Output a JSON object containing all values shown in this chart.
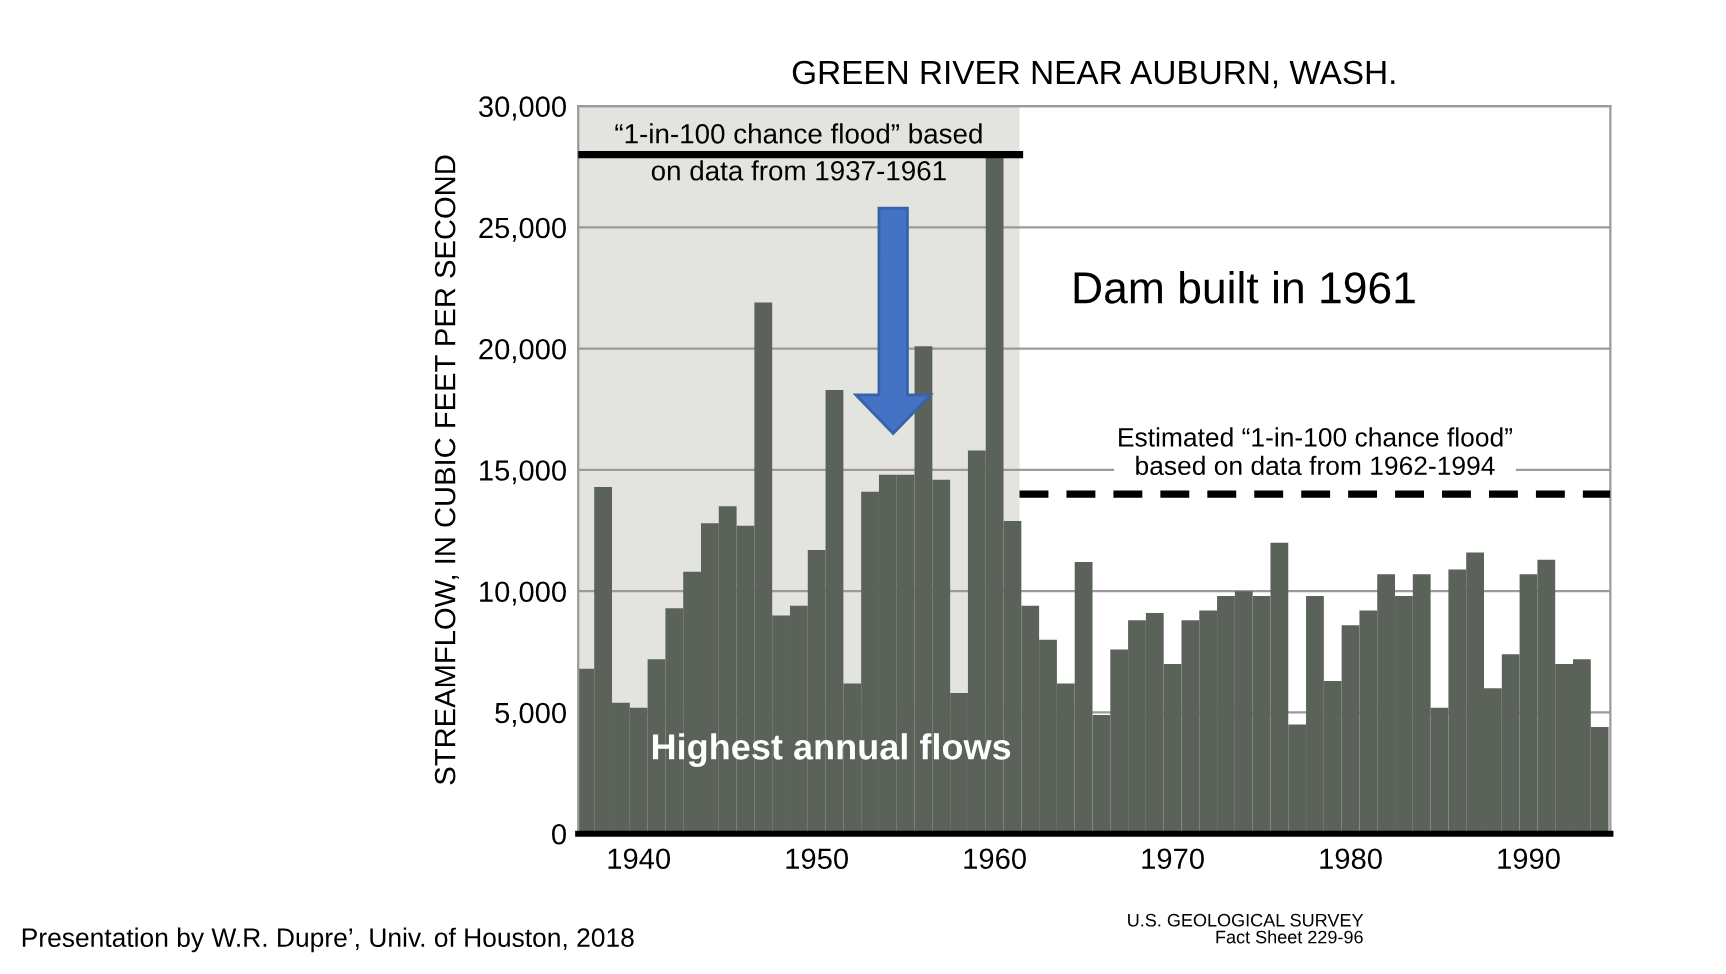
{
  "chart_data": {
    "type": "bar",
    "title": "GREEN RIVER NEAR AUBURN, WASH.",
    "ylabel": "STREAMFLOW, IN CUBIC FEET PER SECOND",
    "x": [
      1937,
      1938,
      1939,
      1940,
      1941,
      1942,
      1943,
      1944,
      1945,
      1946,
      1947,
      1948,
      1949,
      1950,
      1951,
      1952,
      1953,
      1954,
      1955,
      1956,
      1957,
      1958,
      1959,
      1960,
      1961,
      1962,
      1963,
      1964,
      1965,
      1966,
      1967,
      1968,
      1969,
      1970,
      1971,
      1972,
      1973,
      1974,
      1975,
      1976,
      1977,
      1978,
      1979,
      1980,
      1981,
      1982,
      1983,
      1984,
      1985,
      1986,
      1987,
      1988,
      1989,
      1990,
      1991,
      1992,
      1993,
      1994
    ],
    "series": [
      {
        "color": "#5b6259",
        "values": [
          6800,
          14300,
          5400,
          5200,
          7200,
          9300,
          10800,
          12800,
          13500,
          12700,
          21900,
          9000,
          9400,
          11700,
          18300,
          6200,
          14100,
          14800,
          14800,
          20100,
          14600,
          5800,
          15800,
          28100,
          12900,
          9400,
          8000,
          6200,
          11200,
          4900,
          7600,
          8800,
          9100,
          7000,
          8800,
          9200,
          9800,
          10000,
          9800,
          12000,
          4500,
          9800,
          6300,
          8600,
          9200,
          10700,
          9800,
          10700,
          5200,
          10900,
          11600,
          6000,
          7400,
          10700,
          11300,
          7000,
          7200,
          4400
        ]
      },
      {
        "type": "line",
        "color": "#000000",
        "line_style": "solid",
        "x": [
          1936.6,
          1961.4
        ],
        "values": [
          28000,
          28000
        ]
      },
      {
        "type": "line",
        "color": "#000000",
        "line_style": "dashed",
        "x": [
          1961.4,
          1994.6
        ],
        "values": [
          14000,
          14000
        ]
      }
    ],
    "bands": [
      {
        "axis": "x",
        "from": 1936.6,
        "to": 1961.4,
        "color": "#e3e3df"
      }
    ],
    "xlim": [
      1936.6,
      1994.6
    ],
    "xticks": [
      1940,
      1950,
      1960,
      1970,
      1980,
      1990
    ],
    "ylim": [
      0,
      30000
    ],
    "yticks": [
      0,
      {
        "value": 5000,
        "label": "5,000"
      },
      {
        "value": 10000,
        "label": "10,000"
      },
      {
        "value": 15000,
        "label": "15,000"
      },
      {
        "value": 20000,
        "label": "20,000"
      },
      {
        "value": 25000,
        "label": "25,000"
      },
      {
        "value": 30000,
        "label": "30,000"
      }
    ],
    "grid": "y",
    "annotations": [
      {
        "text": "“1-in-100 chance flood” based\non data from 1937-1961",
        "x": 1949,
        "y": 28000
      },
      {
        "text": "Estimated “1-in-100 chance flood”\nbased on data from 1962-1994",
        "x": 1978,
        "y": 14000
      },
      "Dam built in 1961",
      "Highest annual flows",
      "Presentation by W.R. Dupre’, Univ. of Houston, 2018",
      "U.S. GEOLOGICAL SURVEY\nFact Sheet 229-96"
    ]
  }
}
